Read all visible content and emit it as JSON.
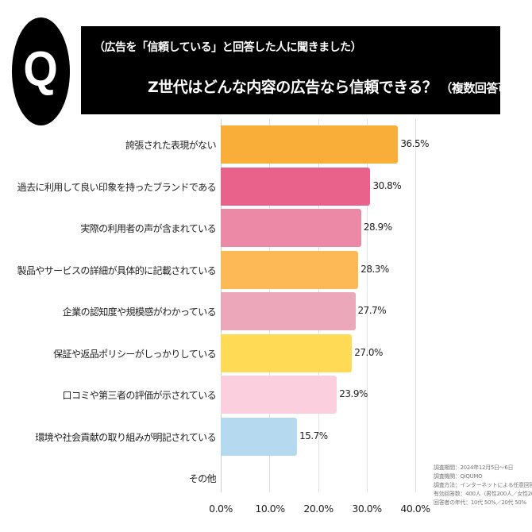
{
  "header": {
    "badge_letter": "Q",
    "subtitle": "（広告を「信頼している」と回答した人に聞きました）",
    "title": "Z世代はどんな内容の広告なら信頼できる？",
    "title_note": "（複数回答可）"
  },
  "chart_data": {
    "type": "bar",
    "orientation": "horizontal",
    "title": "Z世代はどんな内容の広告なら信頼できる？（複数回答可）",
    "subtitle": "（広告を「信頼している」と回答した人に聞きました）",
    "xlabel": "",
    "ylabel": "",
    "xlim": [
      0,
      40
    ],
    "grid": true,
    "legend": null,
    "categories": [
      "誇張された表現がない",
      "過去に利用して良い印象を持ったブランドである",
      "実際の利用者の声が含まれている",
      "製品やサービスの詳細が具体的に記載されている",
      "企業の認知度や規模感がわかっている",
      "保証や返品ポリシーがしっかりしている",
      "口コミや第三者の評価が示されている",
      "環境や社会貢献の取り組みが明記されている",
      "その他"
    ],
    "values": [
      36.5,
      30.8,
      28.9,
      28.3,
      27.7,
      27.0,
      23.9,
      15.7,
      0
    ],
    "value_labels": [
      "36.5%",
      "30.8%",
      "28.9%",
      "28.3%",
      "27.7%",
      "27.0%",
      "23.9%",
      "15.7%",
      ""
    ],
    "colors": [
      "#F9AE3A",
      "#E9628B",
      "#EB89A7",
      "#FDB955",
      "#ECA7BA",
      "#FFDA55",
      "#FBCFDD",
      "#B5D9EE",
      "#FFFFFF"
    ],
    "x_ticks": [
      "0.0%",
      "10.0%",
      "20.0%",
      "30.0%",
      "40.0%"
    ]
  },
  "footnote": {
    "lines": [
      "調査期間：2024年12月5日〜6日",
      "調査機関：QiQUMO",
      "調査方法：インターネットによる任意回答",
      "有効回答数：400人（男性200人／女性200人）",
      "回答者の年代：10代 50%／20代 50%"
    ]
  }
}
